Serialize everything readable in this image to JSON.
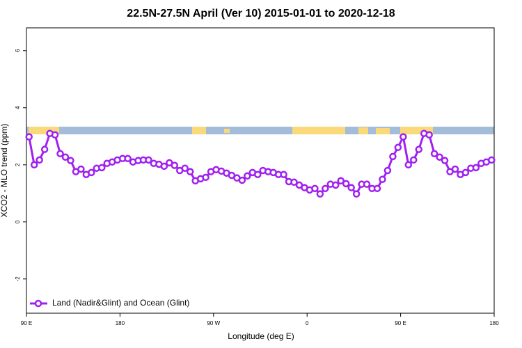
{
  "chart_data": {
    "type": "line",
    "title": "22.5N-27.5N April (Ver 10)   2015-01-01 to 2020-12-18",
    "x_label": "Longitude (deg E)",
    "y_label": "XCO2 - MLO trend (ppm)",
    "x": [
      92.5,
      97.5,
      102.5,
      107.5,
      112.5,
      117.5,
      122.5,
      127.5,
      132.5,
      137.5,
      142.5,
      147.5,
      152.5,
      157.5,
      162.5,
      167.5,
      172.5,
      177.5,
      182.5,
      187.5,
      192.5,
      197.5,
      202.5,
      207.5,
      212.5,
      217.5,
      222.5,
      227.5,
      232.5,
      237.5,
      242.5,
      247.5,
      252.5,
      257.5,
      262.5,
      267.5,
      272.5,
      277.5,
      282.5,
      287.5,
      292.5,
      297.5,
      302.5,
      307.5,
      312.5,
      317.5,
      322.5,
      327.5,
      332.5,
      337.5,
      342.5,
      347.5,
      352.5,
      357.5,
      362.5,
      367.5,
      372.5,
      377.5,
      382.5,
      387.5,
      392.5,
      397.5,
      402.5,
      407.5,
      412.5,
      417.5,
      422.5,
      427.5,
      432.5,
      437.5,
      442.5,
      447.5,
      452.5,
      457.5,
      462.5,
      467.5,
      472.5,
      477.5,
      482.5,
      487.5,
      492.5,
      497.5,
      502.5,
      507.5,
      512.5,
      517.5,
      522.5,
      527.5,
      532.5,
      537.5
    ],
    "series": [
      {
        "name": "Land (Nadir&Glint) and Ocean (Glint)",
        "color": "#a020f0",
        "values": [
          2.98,
          2.0,
          2.17,
          2.54,
          3.1,
          3.05,
          2.39,
          2.27,
          2.15,
          1.76,
          1.85,
          1.66,
          1.73,
          1.88,
          1.9,
          2.05,
          2.1,
          2.17,
          2.22,
          2.22,
          2.1,
          2.15,
          2.17,
          2.17,
          2.05,
          2.02,
          1.95,
          2.07,
          1.98,
          1.8,
          1.88,
          1.76,
          1.44,
          1.51,
          1.56,
          1.76,
          1.83,
          1.78,
          1.71,
          1.63,
          1.54,
          1.46,
          1.61,
          1.73,
          1.66,
          1.8,
          1.76,
          1.73,
          1.66,
          1.66,
          1.41,
          1.39,
          1.29,
          1.2,
          1.12,
          1.17,
          0.98,
          1.17,
          1.32,
          1.29,
          1.44,
          1.34,
          1.2,
          0.98,
          1.32,
          1.32,
          1.17,
          1.17,
          1.49,
          1.8,
          2.29,
          2.61,
          2.98,
          2.0,
          2.17,
          2.54,
          3.1,
          3.05,
          2.39,
          2.27,
          2.15,
          1.76,
          1.85,
          1.66,
          1.73,
          1.88,
          1.9,
          2.05,
          2.1,
          2.17
        ]
      }
    ],
    "xlim": [
      90,
      540
    ],
    "xticks": [
      {
        "value": 90,
        "label": "90 E"
      },
      {
        "value": 180,
        "label": "180"
      },
      {
        "value": 270,
        "label": "90 W"
      },
      {
        "value": 360,
        "label": "0"
      },
      {
        "value": 450,
        "label": "90 E"
      },
      {
        "value": 540,
        "label": "180"
      }
    ],
    "ylim": [
      -3.2,
      6.8
    ],
    "yticks": [
      -2,
      0,
      2,
      4,
      6
    ],
    "legend": "bottom-left"
  }
}
